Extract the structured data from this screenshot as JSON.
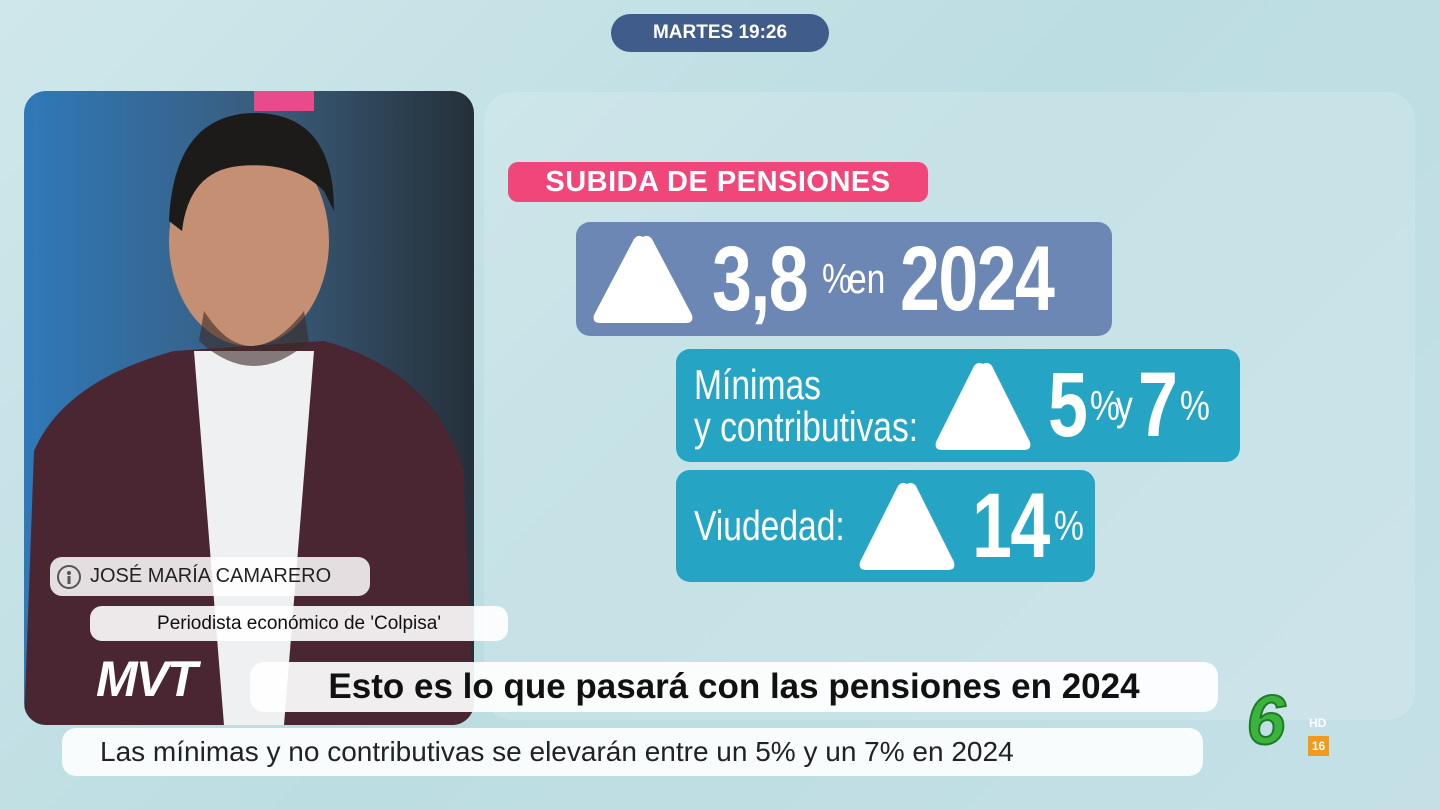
{
  "header": {
    "time": "MARTES 19:26"
  },
  "graphic": {
    "tag": "SUBIDA DE PENSIONES",
    "general": {
      "value": "3,8",
      "unit": "%",
      "connector": "en",
      "year": "2024"
    },
    "minimas": {
      "label_line1": "Mínimas",
      "label_line2": "y contributivas:",
      "value1": "5",
      "unit1": "%",
      "connector": "y",
      "value2": "7",
      "unit2": "%"
    },
    "viudedad": {
      "label": "Viudedad:",
      "value": "14",
      "unit": "%"
    }
  },
  "guest": {
    "name": "JOSÉ MARÍA CAMARERO",
    "role": "Periodista económico de 'Colpisa'"
  },
  "program": {
    "logo": "MVT"
  },
  "headline": "Esto es lo que pasará con las pensiones en 2024",
  "subtitle": "Las mínimas y no contributivas se elevarán entre un 5% y un 7% en 2024",
  "channel": {
    "logo": "6",
    "quality": "HD",
    "rating": "16"
  }
}
